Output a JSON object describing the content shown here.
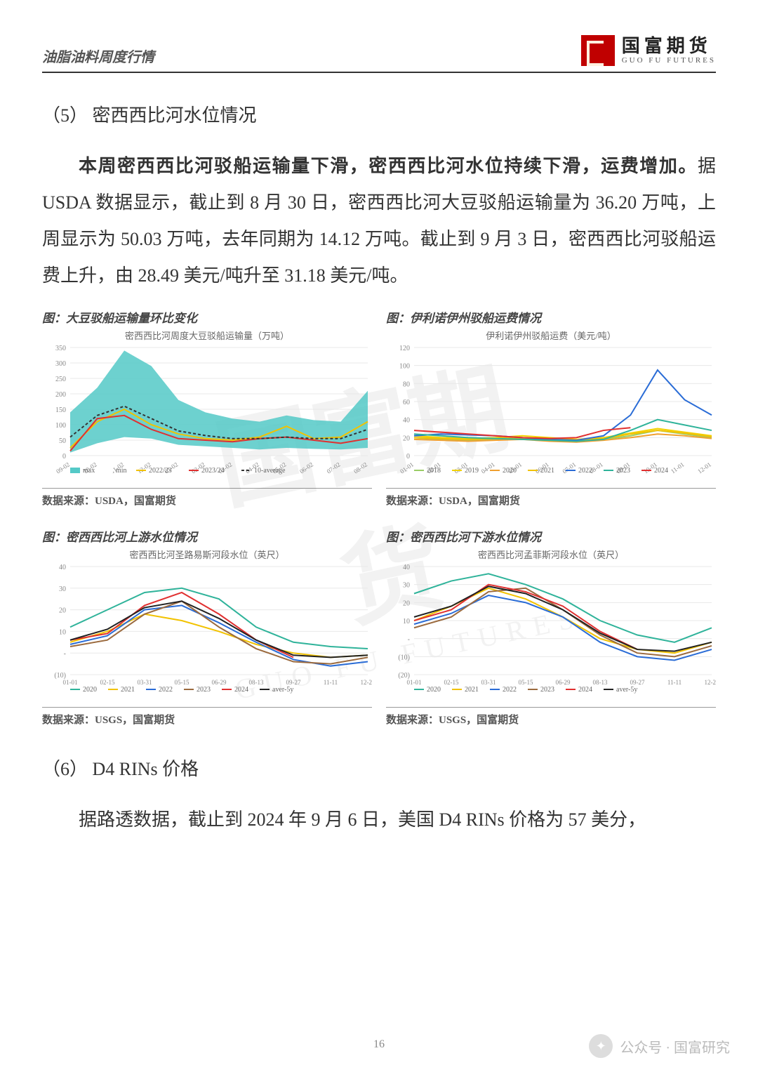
{
  "header": {
    "title": "油脂油料周度行情",
    "logo_cn": "国富期货",
    "logo_en": "GUO FU FUTURES"
  },
  "section5": {
    "heading": "（5）  密西西比河水位情况",
    "para_bold": "本周密西西比河驳船运输量下滑，密西西比河水位持续下滑，运费增加。",
    "para_rest": "据 USDA 数据显示，截止到 8 月 30 日，密西西比河大豆驳船运输量为 36.20 万吨，上周显示为 50.03 万吨，去年同期为 14.12 万吨。截止到 9 月 3 日，密西西比河驳船运费上升，由 28.49 美元/吨升至 31.18 美元/吨。"
  },
  "chart1": {
    "type": "line-area",
    "title": "图：大豆驳船运输量环比变化",
    "subtitle": "密西西比河周度大豆驳船运输量（万吨）",
    "ylim": [
      0,
      350
    ],
    "yticks": [
      0,
      50,
      100,
      150,
      200,
      250,
      300,
      350
    ],
    "x_labels": [
      "09-02",
      "10-02",
      "11-02",
      "12-02",
      "01-02",
      "02-02",
      "03-02",
      "04-02",
      "05-02",
      "06-02",
      "07-02",
      "08-02"
    ],
    "colors": {
      "area_max": "#54c9c7",
      "line_min_hidden": "#ffffff",
      "s2022": "#f2c200",
      "s2023": "#e03030",
      "avg": "#333333",
      "grid": "#e8e8e8",
      "axis_text": "#888888"
    },
    "max_band": [
      140,
      220,
      340,
      290,
      180,
      140,
      120,
      110,
      130,
      115,
      110,
      210
    ],
    "min_band": [
      10,
      40,
      60,
      55,
      35,
      30,
      25,
      20,
      25,
      22,
      20,
      25
    ],
    "s2022_23": [
      25,
      110,
      150,
      100,
      70,
      55,
      50,
      60,
      95,
      55,
      60,
      110
    ],
    "s2023_24": [
      15,
      120,
      130,
      85,
      55,
      50,
      45,
      55,
      60,
      50,
      40,
      55
    ],
    "avg10": [
      60,
      130,
      160,
      120,
      80,
      65,
      55,
      55,
      60,
      55,
      55,
      85
    ],
    "legend": [
      "max",
      "min",
      "2022/23",
      "2023/24",
      "10-average"
    ],
    "source": "数据来源：USDA，国富期货"
  },
  "chart2": {
    "type": "line",
    "title": "图：伊利诺伊州驳船运费情况",
    "subtitle": "伊利诺伊州驳船运费（美元/吨）",
    "ylim": [
      0,
      120
    ],
    "yticks": [
      0,
      20,
      40,
      60,
      80,
      100,
      120
    ],
    "x_labels": [
      "01-01",
      "02-01",
      "03-01",
      "04-01",
      "05-01",
      "06-01",
      "07-01",
      "08-01",
      "09-01",
      "10-01",
      "11-01",
      "12-01"
    ],
    "colors": {
      "y2018": "#9acd66",
      "y2019": "#f2d200",
      "y2020": "#f0a030",
      "y2021": "#f2c200",
      "y2022": "#2a6cd6",
      "y2023": "#2fb39a",
      "y2024": "#e03030",
      "grid": "#e8e8e8",
      "axis_text": "#888888"
    },
    "series": {
      "y2018": [
        20,
        18,
        17,
        18,
        19,
        17,
        16,
        18,
        22,
        28,
        24,
        20
      ],
      "y2019": [
        22,
        20,
        19,
        20,
        22,
        20,
        18,
        20,
        25,
        30,
        26,
        22
      ],
      "y2020": [
        18,
        17,
        16,
        17,
        18,
        16,
        15,
        17,
        20,
        24,
        22,
        19
      ],
      "y2021": [
        20,
        19,
        18,
        19,
        20,
        18,
        17,
        19,
        24,
        28,
        25,
        21
      ],
      "y2022": [
        22,
        24,
        23,
        22,
        20,
        18,
        17,
        22,
        45,
        95,
        62,
        45
      ],
      "y2023": [
        24,
        22,
        20,
        19,
        18,
        17,
        16,
        18,
        28,
        40,
        34,
        28
      ],
      "y2024": [
        28,
        26,
        24,
        22,
        20,
        19,
        20,
        28,
        31,
        null,
        null,
        null
      ]
    },
    "legend": [
      "2018",
      "2019",
      "2020",
      "2021",
      "2022",
      "2023",
      "2024"
    ],
    "source": "数据来源：USDA，国富期货"
  },
  "chart3": {
    "type": "line",
    "title": "图：密西西比河上游水位情况",
    "subtitle": "密西西比河圣路易斯河段水位（英尺）",
    "ylim": [
      -10,
      40
    ],
    "yticks": [
      -10,
      0,
      10,
      20,
      30,
      40
    ],
    "ytick_labels": [
      "(10)",
      "-",
      "10",
      "20",
      "30",
      "40"
    ],
    "x_labels": [
      "01-01",
      "02-15",
      "03-31",
      "05-15",
      "06-29",
      "08-13",
      "09-27",
      "11-11",
      "12-26"
    ],
    "colors": {
      "y2020": "#2fb39a",
      "y2021": "#f2c200",
      "y2022": "#2a6cd6",
      "y2023": "#9b6a3e",
      "y2024": "#e03030",
      "avg5": "#222222",
      "grid": "#e8e8e8",
      "axis_text": "#888888"
    },
    "series": {
      "y2020": [
        12,
        20,
        28,
        30,
        25,
        12,
        5,
        3,
        2
      ],
      "y2021": [
        5,
        10,
        18,
        15,
        10,
        4,
        0,
        -2,
        -1
      ],
      "y2022": [
        4,
        8,
        20,
        22,
        14,
        5,
        -3,
        -6,
        -4
      ],
      "y2023": [
        3,
        6,
        18,
        24,
        12,
        2,
        -4,
        -5,
        -2
      ],
      "y2024": [
        6,
        9,
        22,
        28,
        18,
        6,
        -2,
        null,
        null
      ],
      "avg5": [
        6,
        11,
        21,
        24,
        16,
        6,
        -1,
        -2,
        -1
      ]
    },
    "legend": [
      "2020",
      "2021",
      "2022",
      "2023",
      "2024",
      "aver-5y"
    ],
    "source": "数据来源：USGS，国富期货"
  },
  "chart4": {
    "type": "line",
    "title": "图：密西西比河下游水位情况",
    "subtitle": "密西西比河孟菲斯河段水位（英尺）",
    "ylim": [
      -20,
      40
    ],
    "yticks": [
      -20,
      -10,
      0,
      10,
      20,
      30,
      40
    ],
    "ytick_labels": [
      "(20)",
      "(10)",
      "-",
      "10",
      "20",
      "30",
      "40"
    ],
    "x_labels": [
      "01-01",
      "02-15",
      "03-31",
      "05-15",
      "06-29",
      "08-13",
      "09-27",
      "11-11",
      "12-26"
    ],
    "colors": {
      "y2020": "#2fb39a",
      "y2021": "#f2c200",
      "y2022": "#2a6cd6",
      "y2023": "#9b6a3e",
      "y2024": "#e03030",
      "avg5": "#222222",
      "grid": "#e8e8e8",
      "axis_text": "#888888"
    },
    "series": {
      "y2020": [
        25,
        32,
        36,
        30,
        22,
        10,
        2,
        -2,
        6
      ],
      "y2021": [
        10,
        18,
        28,
        22,
        12,
        0,
        -6,
        -8,
        -2
      ],
      "y2022": [
        8,
        14,
        24,
        20,
        12,
        -2,
        -10,
        -12,
        -6
      ],
      "y2023": [
        6,
        12,
        26,
        28,
        16,
        2,
        -8,
        -10,
        -4
      ],
      "y2024": [
        10,
        16,
        30,
        26,
        18,
        4,
        -6,
        null,
        null
      ],
      "avg5": [
        12,
        18,
        29,
        25,
        16,
        3,
        -6,
        -7,
        -2
      ]
    },
    "legend": [
      "2020",
      "2021",
      "2022",
      "2023",
      "2024",
      "aver-5y"
    ],
    "source": "数据来源：USGS，国富期货"
  },
  "section6": {
    "heading": "（6）  D4 RINs 价格",
    "para": "据路透数据，截止到 2024 年 9 月 6 日，美国 D4 RINs 价格为 57 美分，"
  },
  "page_number": "16",
  "bottom_watermark": "公众号 · 国富研究"
}
